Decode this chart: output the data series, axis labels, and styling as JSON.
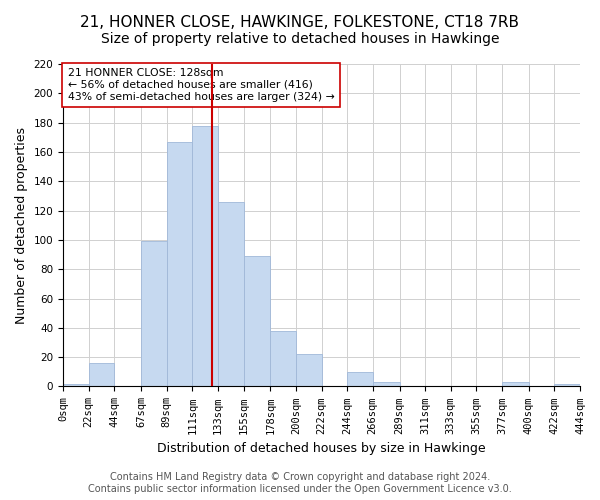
{
  "title": "21, HONNER CLOSE, HAWKINGE, FOLKESTONE, CT18 7RB",
  "subtitle": "Size of property relative to detached houses in Hawkinge",
  "xlabel": "Distribution of detached houses by size in Hawkinge",
  "ylabel": "Number of detached properties",
  "bar_edges": [
    0,
    22,
    44,
    67,
    89,
    111,
    133,
    155,
    178,
    200,
    222,
    244,
    266,
    289,
    311,
    333,
    355,
    377,
    400,
    422,
    444
  ],
  "bar_heights": [
    2,
    16,
    0,
    99,
    167,
    178,
    126,
    89,
    38,
    22,
    0,
    10,
    3,
    0,
    0,
    0,
    0,
    3,
    0,
    2
  ],
  "bar_color": "#c6d9f0",
  "bar_edgecolor": "#a0b8d8",
  "vline_x": 128,
  "vline_color": "#cc0000",
  "annotation_title": "21 HONNER CLOSE: 128sqm",
  "annotation_line1": "← 56% of detached houses are smaller (416)",
  "annotation_line2": "43% of semi-detached houses are larger (324) →",
  "annotation_box_edgecolor": "#cc0000",
  "tick_labels": [
    "0sqm",
    "22sqm",
    "44sqm",
    "67sqm",
    "89sqm",
    "111sqm",
    "133sqm",
    "155sqm",
    "178sqm",
    "200sqm",
    "222sqm",
    "244sqm",
    "266sqm",
    "289sqm",
    "311sqm",
    "333sqm",
    "355sqm",
    "377sqm",
    "400sqm",
    "422sqm",
    "444sqm"
  ],
  "ylim": [
    0,
    220
  ],
  "yticks": [
    0,
    20,
    40,
    60,
    80,
    100,
    120,
    140,
    160,
    180,
    200,
    220
  ],
  "footer_line1": "Contains HM Land Registry data © Crown copyright and database right 2024.",
  "footer_line2": "Contains public sector information licensed under the Open Government Licence v3.0.",
  "background_color": "#ffffff",
  "grid_color": "#d0d0d0",
  "title_fontsize": 11,
  "subtitle_fontsize": 10,
  "axis_label_fontsize": 9,
  "tick_fontsize": 7.5,
  "footer_fontsize": 7
}
